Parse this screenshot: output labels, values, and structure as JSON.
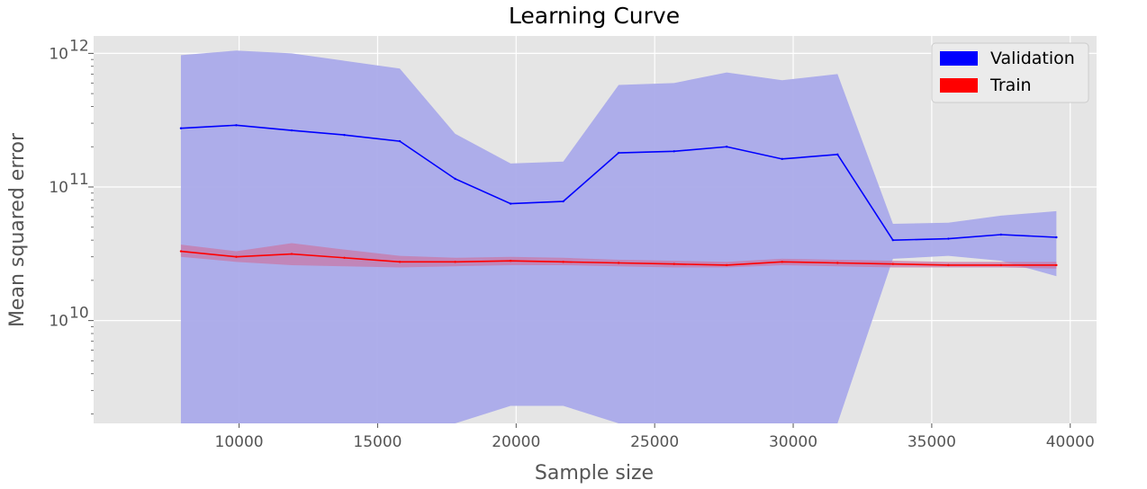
{
  "chart_data": {
    "type": "line",
    "title": "Learning Curve",
    "xlabel": "Sample size",
    "ylabel": "Mean squared error",
    "yscale": "log",
    "xlim": [
      4750,
      40950
    ],
    "ylim": [
      1700000000.0,
      1350000000000.0
    ],
    "grid": true,
    "legend_position": "top-right",
    "x_ticks": [
      10000,
      15000,
      20000,
      25000,
      30000,
      35000,
      40000
    ],
    "x_tick_labels": [
      "10000",
      "15000",
      "20000",
      "25000",
      "30000",
      "35000",
      "40000"
    ],
    "y_ticks": [
      10000000000.0,
      100000000000.0,
      1000000000000.0
    ],
    "y_tick_labels": [
      {
        "base": "10",
        "exp": "10"
      },
      {
        "base": "10",
        "exp": "11"
      },
      {
        "base": "10",
        "exp": "12"
      }
    ],
    "x": [
      7900,
      9900,
      11900,
      13800,
      15800,
      17800,
      19800,
      21700,
      23700,
      25700,
      27600,
      29600,
      31600,
      33600,
      35600,
      37500,
      39500
    ],
    "series": [
      {
        "name": "Validation",
        "color": "#0000ff",
        "band_color": "#aaaaea",
        "values": [
          275000000000.0,
          290000000000.0,
          265000000000.0,
          245000000000.0,
          220000000000.0,
          115000000000.0,
          75000000000.0,
          78000000000.0,
          180000000000.0,
          185000000000.0,
          200000000000.0,
          162000000000.0,
          175000000000.0,
          40000000000.0,
          41000000000.0,
          44000000000.0,
          42000000000.0
        ],
        "band_upper": [
          970000000000.0,
          1050000000000.0,
          1000000000000.0,
          880000000000.0,
          770000000000.0,
          250000000000.0,
          150000000000.0,
          155000000000.0,
          580000000000.0,
          600000000000.0,
          720000000000.0,
          630000000000.0,
          700000000000.0,
          53000000000.0,
          54000000000.0,
          61000000000.0,
          66000000000.0
        ],
        "band_lower": [
          1700000000.0,
          1700000000.0,
          1700000000.0,
          1700000000.0,
          1700000000.0,
          1700000000.0,
          2300000000.0,
          2300000000.0,
          1700000000.0,
          1700000000.0,
          1700000000.0,
          1700000000.0,
          1700000000.0,
          29000000000.0,
          30500000000.0,
          28000000000.0,
          21500000000.0
        ]
      },
      {
        "name": "Train",
        "color": "#ff0000",
        "band_color": "#c87aa8",
        "values": [
          33000000000.0,
          30000000000.0,
          31500000000.0,
          29500000000.0,
          27500000000.0,
          27500000000.0,
          28000000000.0,
          27500000000.0,
          27000000000.0,
          26500000000.0,
          26000000000.0,
          27500000000.0,
          27000000000.0,
          26500000000.0,
          26000000000.0,
          26000000000.0,
          26000000000.0
        ],
        "band_upper": [
          37000000000.0,
          33000000000.0,
          38000000000.0,
          34000000000.0,
          30500000000.0,
          29500000000.0,
          30000000000.0,
          29500000000.0,
          28500000000.0,
          28000000000.0,
          27500000000.0,
          29000000000.0,
          28500000000.0,
          28000000000.0,
          27500000000.0,
          27500000000.0,
          27500000000.0
        ],
        "band_lower": [
          30000000000.0,
          27500000000.0,
          26000000000.0,
          25500000000.0,
          25000000000.0,
          25500000000.0,
          26000000000.0,
          26000000000.0,
          25500000000.0,
          25000000000.0,
          25000000000.0,
          26000000000.0,
          25500000000.0,
          25000000000.0,
          25000000000.0,
          25000000000.0,
          24500000000.0
        ]
      }
    ]
  }
}
